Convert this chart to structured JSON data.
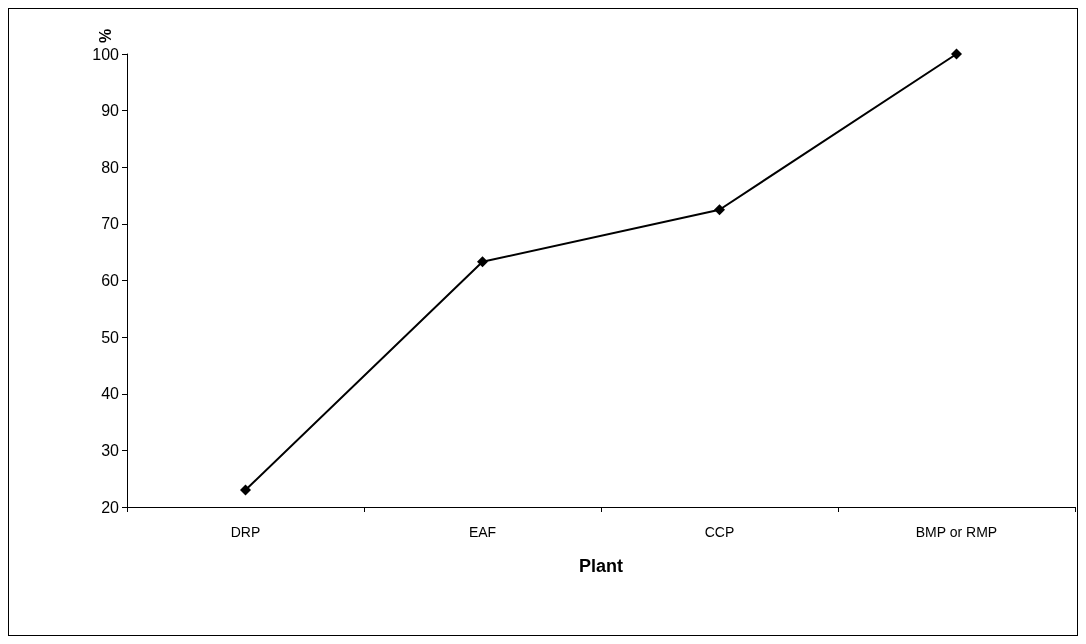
{
  "chart_data": {
    "type": "line",
    "xlabel": "Plant",
    "ylabel": "%",
    "categories": [
      "DRP",
      "EAF",
      "CCP",
      "BMP or RMP"
    ],
    "series": [
      {
        "color": "#000000",
        "values": [
          23,
          63.3,
          72.5,
          100
        ]
      }
    ],
    "ylim": [
      20,
      100
    ],
    "yticks": [
      20,
      30,
      40,
      50,
      60,
      70,
      80,
      90,
      100
    ],
    "grid": false,
    "marker": "diamond",
    "line_style": "solid"
  }
}
